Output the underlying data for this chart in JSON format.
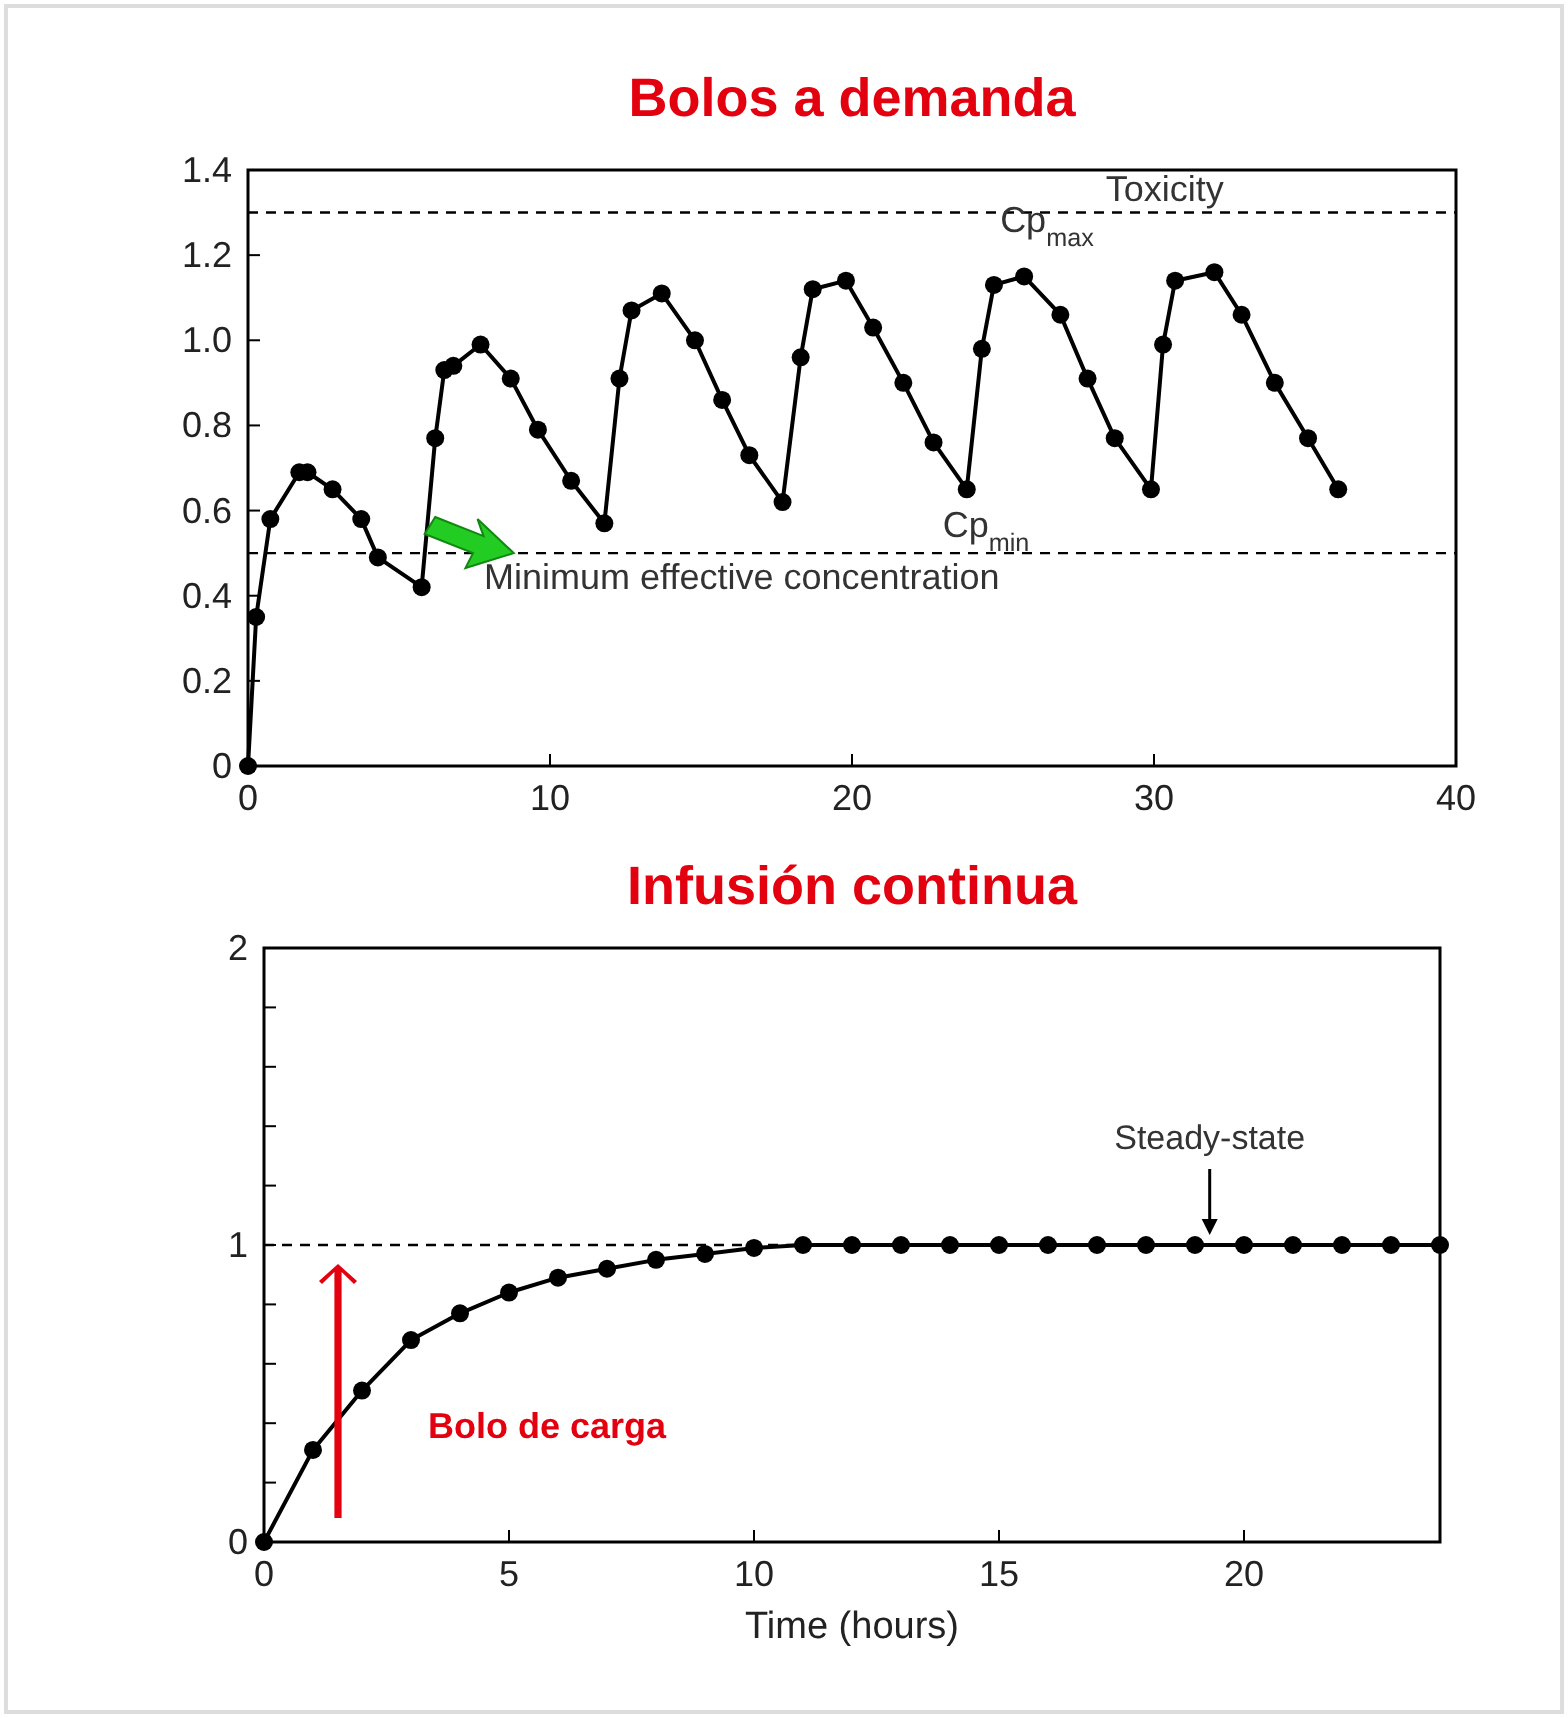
{
  "chart_data": [
    {
      "type": "line",
      "title": "Bolos a demanda",
      "marker": "circle",
      "line_style": "solid",
      "grid": false,
      "xlim": [
        0,
        40
      ],
      "xticks": [
        0,
        10,
        20,
        30,
        40
      ],
      "ylim": [
        0,
        1.4
      ],
      "yticks": [
        0,
        0.2,
        0.4,
        0.6,
        0.8,
        {
          "value": 1,
          "label": "1.0"
        },
        1.2,
        1.4
      ],
      "series": [
        {
          "color": "#000000",
          "x": [
            0,
            0.27,
            0.74,
            1.7,
            1.97,
            2.8,
            3.75,
            4.3,
            5.75,
            6.2,
            6.5,
            6.8,
            7.7,
            8.7,
            9.6,
            10.7,
            11.8,
            12.3,
            12.7,
            13.7,
            14.8,
            15.7,
            16.6,
            17.7,
            18.3,
            18.7,
            19.8,
            20.7,
            21.7,
            22.7,
            23.8,
            24.3,
            24.7,
            25.7,
            26.9,
            27.8,
            28.7,
            29.9,
            30.3,
            30.7,
            32.0,
            32.9,
            34.0,
            35.1,
            36.1
          ],
          "values": [
            0,
            0.35,
            0.58,
            0.69,
            0.69,
            0.65,
            0.58,
            0.49,
            0.42,
            0.77,
            0.93,
            0.94,
            0.99,
            0.91,
            0.79,
            0.67,
            0.57,
            0.91,
            1.07,
            1.11,
            1.0,
            0.86,
            0.73,
            0.62,
            0.96,
            1.12,
            1.14,
            1.03,
            0.9,
            0.76,
            0.65,
            0.98,
            1.13,
            1.15,
            1.06,
            0.91,
            0.77,
            0.65,
            0.99,
            1.14,
            1.16,
            1.06,
            0.9,
            0.77,
            0.65
          ]
        }
      ],
      "ref_lines": [
        {
          "axis": "y",
          "value": 1.3,
          "label": "Toxicity",
          "line_style": "dashed",
          "color": "#000000"
        },
        {
          "axis": "y",
          "value": 0.5,
          "label": "Minimum effective concentration",
          "line_style": "dashed",
          "color": "#000000"
        }
      ],
      "annotations": [
        {
          "text": "Cp$_{max}$",
          "x": 25.7,
          "y": 1.15
        },
        {
          "text": "Cp$_{min}$",
          "x": 23.8,
          "y": 0.65
        }
      ]
    },
    {
      "type": "line",
      "title": "Infusión continua",
      "xlabel": "Time (hours)",
      "marker": "circle",
      "line_style": "solid",
      "grid": false,
      "xlim": [
        0,
        24
      ],
      "xticks": [
        0,
        5,
        10,
        15,
        20
      ],
      "ylim": [
        0,
        2
      ],
      "yticks": [
        0,
        {
          "value": 0.2,
          "label": null
        },
        {
          "value": 0.4,
          "label": null
        },
        {
          "value": 0.6,
          "label": null
        },
        {
          "value": 0.8,
          "label": null
        },
        1,
        {
          "value": 1.2,
          "label": null
        },
        {
          "value": 1.4,
          "label": null
        },
        {
          "value": 1.6,
          "label": null
        },
        {
          "value": 1.8,
          "label": null
        },
        2
      ],
      "series": [
        {
          "color": "#000000",
          "x": [
            0,
            1,
            2,
            3,
            4,
            5,
            6,
            7,
            8,
            9,
            10,
            11,
            12,
            13,
            14,
            15,
            16,
            17,
            18,
            19,
            20,
            21,
            22,
            23,
            24
          ],
          "values": [
            0,
            0.31,
            0.51,
            0.68,
            0.77,
            0.84,
            0.89,
            0.92,
            0.95,
            0.97,
            0.99,
            1.0,
            1.0,
            1.0,
            1.0,
            1.0,
            1.0,
            1.0,
            1.0,
            1.0,
            1.0,
            1.0,
            1.0,
            1.0,
            1.0
          ]
        }
      ],
      "ref_lines": [
        {
          "axis": "y",
          "value": 1,
          "line_style": "dashed",
          "color": "#000000"
        }
      ],
      "annotations": [
        {
          "text": "Steady-state",
          "x": 19.3,
          "y": 1
        },
        "Bolo de carga"
      ]
    }
  ]
}
